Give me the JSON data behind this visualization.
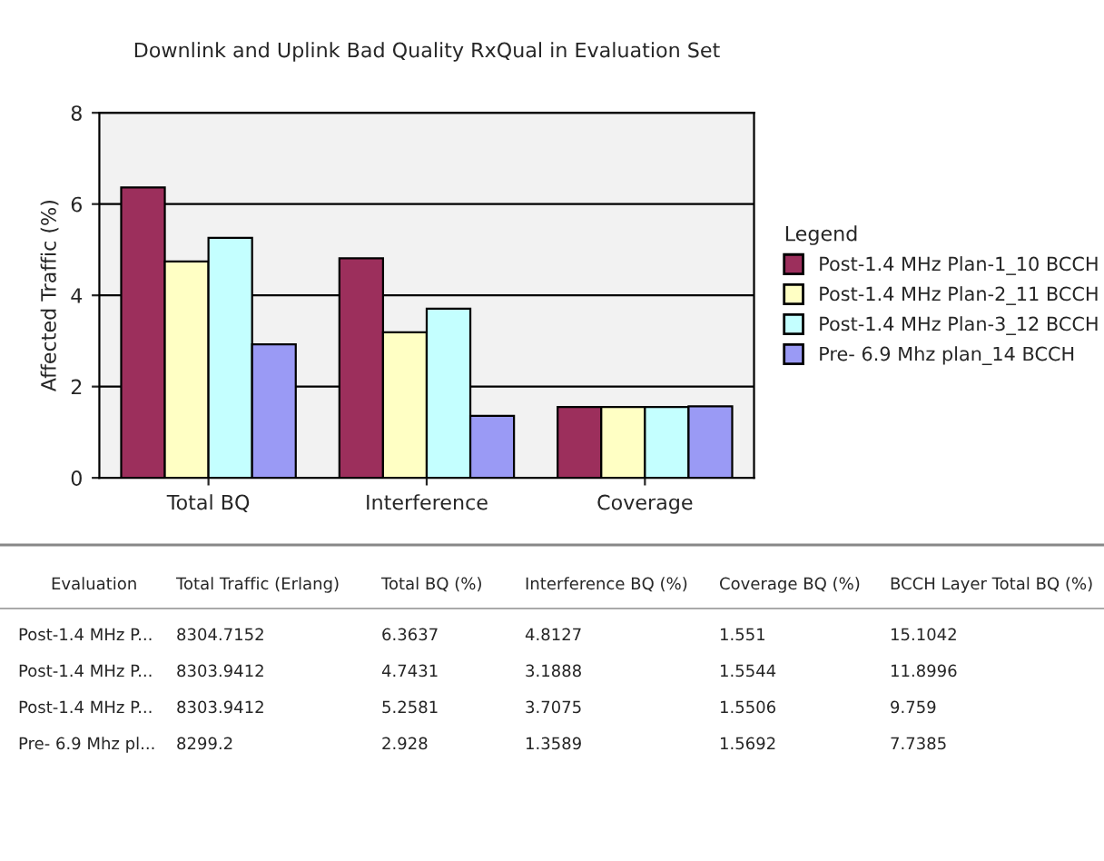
{
  "chart_data": {
    "type": "bar",
    "title": "Downlink and Uplink Bad Quality RxQual in Evaluation Set",
    "ylabel": "Affected Traffic (%)",
    "legend_title": "Legend",
    "categories": [
      "Total BQ",
      "Interference",
      "Coverage"
    ],
    "series": [
      {
        "name": "Post-1.4 MHz Plan-1_10 BCCH",
        "color": "#9c2f5c",
        "values": [
          6.3637,
          4.8127,
          1.551
        ]
      },
      {
        "name": "Post-1.4 MHz Plan-2_11 BCCH",
        "color": "#ffffc4",
        "values": [
          4.7431,
          3.1888,
          1.5544
        ]
      },
      {
        "name": "Post-1.4 MHz Plan-3_12 BCCH",
        "color": "#c4ffff",
        "values": [
          5.2581,
          3.7075,
          1.5506
        ]
      },
      {
        "name": "Pre- 6.9 Mhz plan_14 BCCH",
        "color": "#9a9af5",
        "values": [
          2.928,
          1.3589,
          1.5692
        ]
      }
    ],
    "ylim": [
      0,
      8
    ],
    "yticks": [
      0,
      2,
      4,
      6,
      8
    ],
    "grid": "y",
    "legend": "right",
    "annotations": [
      "Evaluation",
      "Total Traffic (Erlang)",
      "Total BQ (%)",
      "Interference BQ (%)",
      "Coverage BQ (%)",
      "BCCH Layer Total BQ (%)",
      "Post-1.4 MHz P...",
      "8304.7152",
      "6.3637",
      "4.8127",
      "1.551",
      "15.1042",
      "Post-1.4 MHz P...",
      "8303.9412",
      "4.7431",
      "3.1888",
      "1.5544",
      "11.8996",
      "Post-1.4 MHz P...",
      "8303.9412",
      "5.2581",
      "3.7075",
      "1.5506",
      "9.759",
      "Pre- 6.9 Mhz pl...",
      "8299.2",
      "2.928",
      "1.3589",
      "1.5692",
      "7.7385"
    ]
  }
}
